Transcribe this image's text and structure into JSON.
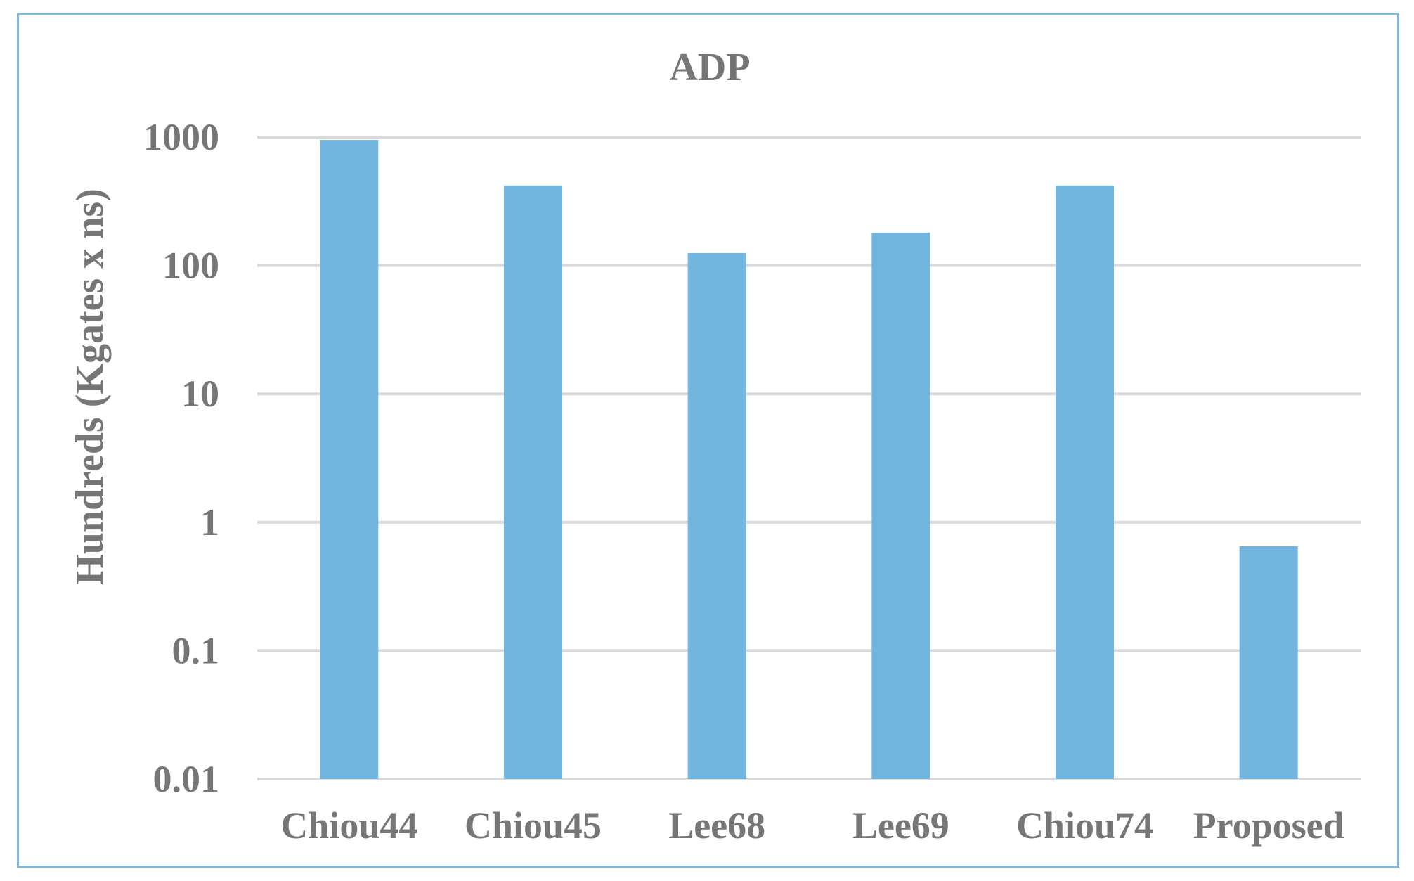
{
  "chart_data": {
    "type": "bar",
    "title": "ADP",
    "xlabel": "",
    "ylabel": "Hundreds (Kgates x ns)",
    "yscale": "log",
    "ylim": [
      0.01,
      1000
    ],
    "yticks": [
      "1000",
      "100",
      "10",
      "1",
      "0.1",
      "0.01"
    ],
    "grid": true,
    "legend": "none",
    "categories": [
      "Chiou44",
      "Chiou45",
      "Lee68",
      "Lee69",
      "Chiou74",
      "Proposed"
    ],
    "values": [
      950,
      420,
      125,
      180,
      420,
      0.65
    ],
    "colors": {
      "bar": "#72b5de",
      "text": "#767676",
      "grid": "#d9d9d9",
      "frame": "#7fb8db"
    }
  }
}
